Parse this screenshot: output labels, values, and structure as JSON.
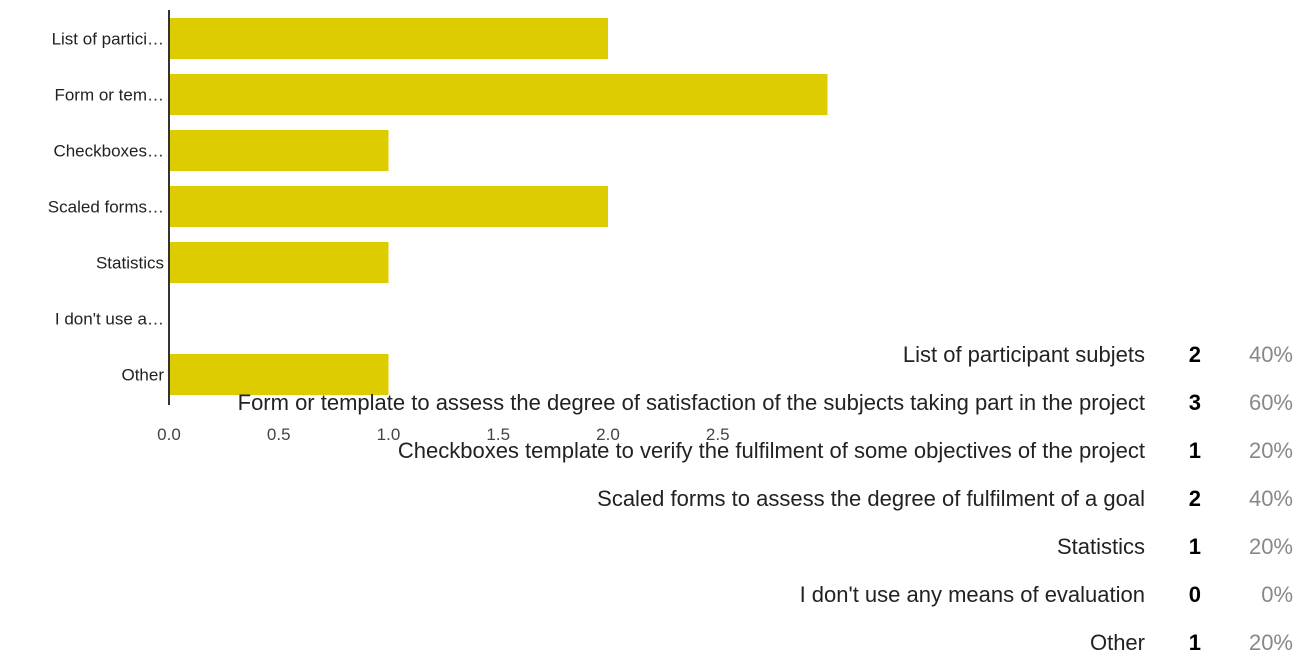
{
  "colors": {
    "bar": "#dccc00",
    "axis": "#333333"
  },
  "chart_data": {
    "type": "bar",
    "orientation": "horizontal",
    "categories": [
      "List of partici…",
      "Form or tem…",
      "Checkboxes…",
      "Scaled forms…",
      "Statistics",
      "I don't use a…",
      "Other"
    ],
    "values": [
      2,
      3,
      1,
      2,
      1,
      0,
      1
    ],
    "xlim": [
      0,
      3
    ],
    "x_ticks": [
      "0.0",
      "0.5",
      "1.0",
      "1.5",
      "2.0",
      "2.5"
    ],
    "grid": false
  },
  "summary": [
    {
      "label": "List of participant subjets",
      "count": "2",
      "percent": "40%"
    },
    {
      "label": "Form or template to assess the degree of satisfaction of the subjects taking part in the project",
      "count": "3",
      "percent": "60%"
    },
    {
      "label": "Checkboxes template to verify the fulfilment of some objectives of the project",
      "count": "1",
      "percent": "20%"
    },
    {
      "label": "Scaled forms to assess the degree of fulfilment of a goal",
      "count": "2",
      "percent": "40%"
    },
    {
      "label": "Statistics",
      "count": "1",
      "percent": "20%"
    },
    {
      "label": "I don't use any means of evaluation",
      "count": "0",
      "percent": "0%"
    },
    {
      "label": "Other",
      "count": "1",
      "percent": "20%"
    }
  ]
}
